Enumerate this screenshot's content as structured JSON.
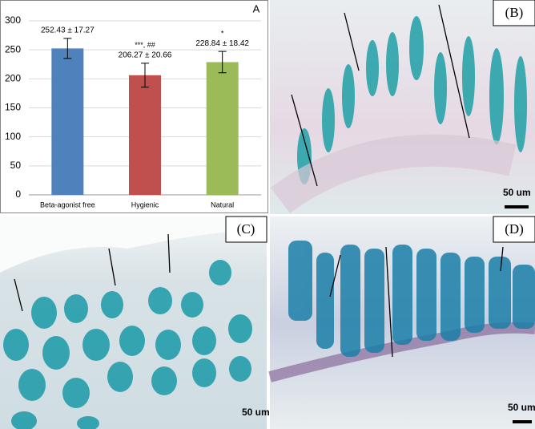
{
  "chart_data": {
    "type": "bar",
    "panel_label": "A",
    "categories": [
      "Beta-agonist free",
      "Hygienic",
      "Natural"
    ],
    "values": [
      252.43,
      206.27,
      228.84
    ],
    "errors": [
      17.27,
      20.66,
      18.42
    ],
    "value_labels": [
      "252.43 ± 17.27",
      "206.27 ± 20.66",
      "228.84 ± 18.42"
    ],
    "annotations": [
      null,
      "***, ##",
      "*"
    ],
    "colors": [
      "#4f81bd",
      "#c0504d",
      "#9bbb59"
    ],
    "ylim": [
      0,
      300
    ],
    "yticks": [
      0,
      50,
      100,
      150,
      200,
      250,
      300
    ],
    "grid": true
  },
  "panels": [
    {
      "label": "(B)",
      "scale": "50 um"
    },
    {
      "label": "(C)",
      "scale": "50 um"
    },
    {
      "label": "(D)",
      "scale": "50 um"
    }
  ]
}
